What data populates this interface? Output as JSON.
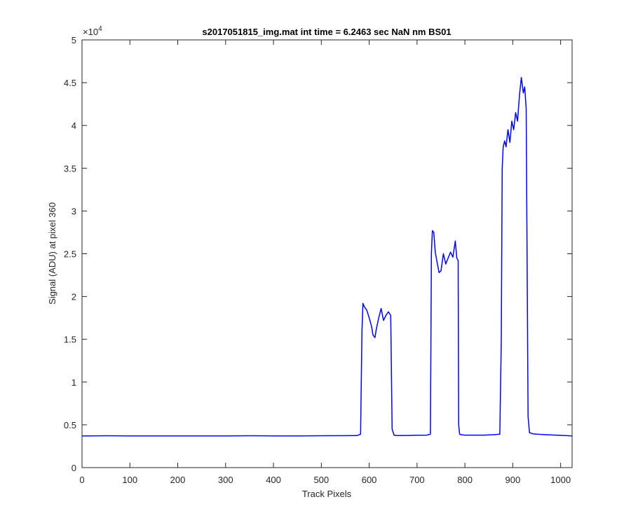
{
  "chart_data": {
    "type": "line",
    "title": "s2017051815_img.mat int time = 6.2463 sec  NaN nm BS01",
    "xlabel": "Track Pixels",
    "ylabel": "Signal (ADU) at pixel 360",
    "y_exponent_label": "×10",
    "y_exponent_power": "4",
    "xlim": [
      0,
      1024
    ],
    "ylim": [
      0,
      50000
    ],
    "x_ticks": [
      0,
      100,
      200,
      300,
      400,
      500,
      600,
      700,
      800,
      900,
      1000
    ],
    "x_tick_labels": [
      "0",
      "100",
      "200",
      "300",
      "400",
      "500",
      "600",
      "700",
      "800",
      "900",
      "1000"
    ],
    "y_ticks": [
      0,
      5000,
      10000,
      15000,
      20000,
      25000,
      30000,
      35000,
      40000,
      45000,
      50000
    ],
    "y_tick_labels": [
      "0",
      "0.5",
      "1",
      "1.5",
      "2",
      "2.5",
      "3",
      "3.5",
      "4",
      "4.5",
      "5"
    ],
    "grid": false,
    "line_color": "#0000ff",
    "series": [
      {
        "x": [
          0,
          50,
          100,
          150,
          200,
          250,
          300,
          350,
          400,
          450,
          500,
          550,
          575,
          582,
          585,
          587,
          590,
          595,
          600,
          605,
          608,
          612,
          615,
          620,
          625,
          630,
          635,
          640,
          645,
          648,
          652,
          656,
          660,
          680,
          700,
          720,
          728,
          730,
          732,
          735,
          738,
          742,
          746,
          750,
          755,
          760,
          765,
          770,
          775,
          780,
          783,
          786,
          787,
          789,
          792,
          800,
          820,
          840,
          860,
          873,
          876,
          878,
          880,
          883,
          886,
          890,
          894,
          898,
          902,
          906,
          910,
          914,
          918,
          922,
          925,
          928,
          932,
          935,
          937,
          939,
          942,
          950,
          970,
          990,
          1010,
          1024
        ],
        "y": [
          3700,
          3720,
          3700,
          3710,
          3700,
          3710,
          3700,
          3720,
          3710,
          3700,
          3720,
          3730,
          3750,
          3900,
          16000,
          19200,
          18800,
          18400,
          17500,
          16500,
          15500,
          15200,
          16200,
          17500,
          18600,
          17200,
          17800,
          18200,
          17800,
          4500,
          3800,
          3760,
          3750,
          3760,
          3780,
          3800,
          3900,
          25000,
          27700,
          27500,
          25200,
          24000,
          22800,
          23000,
          25000,
          23800,
          24500,
          25200,
          24600,
          26500,
          24500,
          24200,
          5000,
          3900,
          3850,
          3800,
          3800,
          3800,
          3850,
          3900,
          15000,
          35000,
          37500,
          38200,
          37500,
          39500,
          38000,
          40500,
          39500,
          41500,
          40500,
          43500,
          45600,
          43800,
          44500,
          42000,
          6000,
          4100,
          4050,
          4000,
          3950,
          3900,
          3850,
          3800,
          3750,
          3700
        ]
      }
    ]
  }
}
